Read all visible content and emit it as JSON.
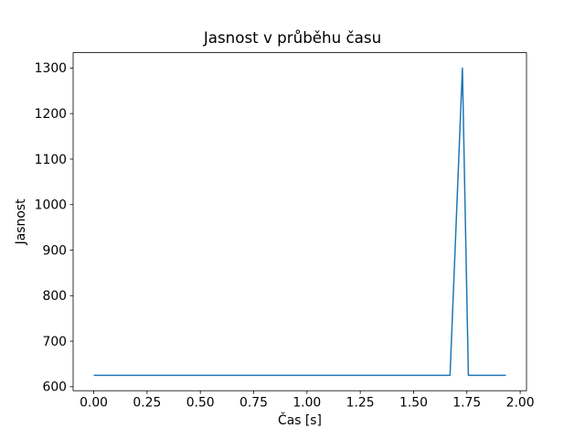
{
  "figure": {
    "background": "#ffffff",
    "text_color": "#000000",
    "spine_color": "#000000"
  },
  "chart_data": {
    "type": "line",
    "title": "Jasnost v průběhu času",
    "xlabel": "Čas [s]",
    "ylabel": "Jasnost",
    "xlim": [
      -0.0966,
      2.0296
    ],
    "ylim": [
      591.25,
      1333.75
    ],
    "grid": false,
    "legend": null,
    "xticks": {
      "values": [
        0.0,
        0.25,
        0.5,
        0.75,
        1.0,
        1.25,
        1.5,
        1.75,
        2.0
      ],
      "labels": [
        "0.00",
        "0.25",
        "0.50",
        "0.75",
        "1.00",
        "1.25",
        "1.50",
        "1.75",
        "2.00"
      ]
    },
    "yticks": {
      "values": [
        600,
        700,
        800,
        900,
        1000,
        1100,
        1200,
        1300
      ],
      "labels": [
        "600",
        "700",
        "800",
        "900",
        "1000",
        "1100",
        "1200",
        "1300"
      ]
    },
    "series": [
      {
        "name": "jasnost",
        "color": "#1f77b4",
        "line_width": 1.5,
        "points": [
          [
            0.0,
            625
          ],
          [
            1.671,
            625
          ],
          [
            1.729,
            1300
          ],
          [
            1.757,
            625
          ],
          [
            1.933,
            625
          ]
        ]
      }
    ]
  }
}
